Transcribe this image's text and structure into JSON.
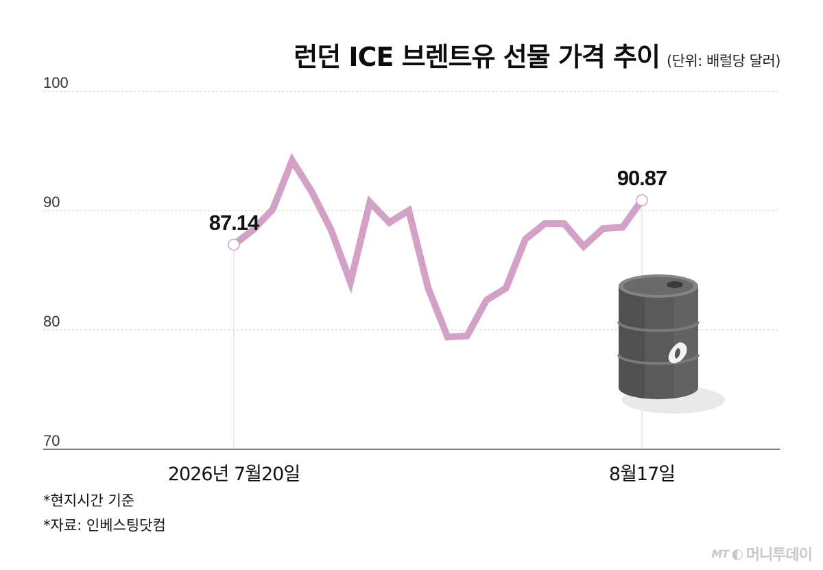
{
  "header": {
    "title": "런던 ICE 브렌트유 선물 가격 추이",
    "unit": "(단위: 배럴당 달러)"
  },
  "notes": [
    "*현지시간 기준",
    "*자료: 인베스팅닷컴"
  ],
  "brand": {
    "mark": "MT",
    "name": "머니투데이"
  },
  "colors": {
    "line": "#D3A0C6",
    "grid": "#cccccc",
    "axis": "#555555",
    "marker_fill": "#ffffff"
  },
  "icons": {
    "barrel": "oil-barrel-icon"
  },
  "chart_data": {
    "type": "line",
    "title": "런던 ICE 브렌트유 선물 가격 추이",
    "ylim": [
      70,
      100
    ],
    "yticks": [
      70,
      80,
      90,
      100
    ],
    "grid": true,
    "x_tick_labels": [
      {
        "index": 0,
        "label": "2026년 7월20일"
      },
      {
        "index": 21,
        "label": "8월17일"
      }
    ],
    "values": [
      87.14,
      88.4,
      90.1,
      94.2,
      91.6,
      88.4,
      84.0,
      90.7,
      89.0,
      90.0,
      83.5,
      79.4,
      79.5,
      82.5,
      83.5,
      87.6,
      88.9,
      88.9,
      87.0,
      88.5,
      88.6,
      90.87
    ],
    "annotations": [
      {
        "index": 0,
        "label": "87.14"
      },
      {
        "index": 21,
        "label": "90.87"
      }
    ]
  }
}
